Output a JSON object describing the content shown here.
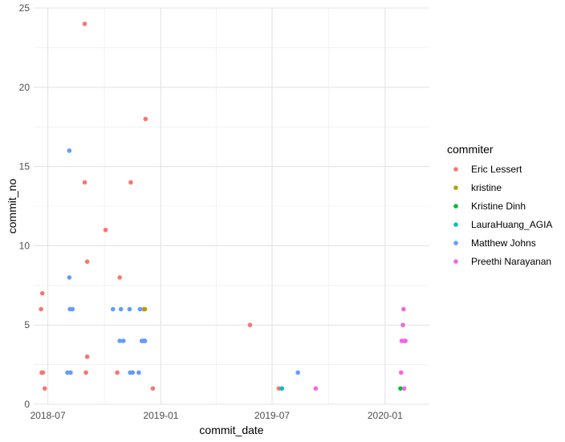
{
  "chart_data": {
    "type": "scatter",
    "title": "",
    "xlabel": "commit_date",
    "ylabel": "commit_no",
    "x_axis": "date",
    "xlim": [
      "2018-06-08",
      "2020-03-13"
    ],
    "ylim": [
      0,
      25
    ],
    "x_ticks": [
      {
        "value": "2018-07-01",
        "label": "2018-07"
      },
      {
        "value": "2019-01-01",
        "label": "2019-01"
      },
      {
        "value": "2019-07-01",
        "label": "2019-07"
      },
      {
        "value": "2020-01-01",
        "label": "2020-01"
      }
    ],
    "y_ticks": [
      0,
      5,
      10,
      15,
      20,
      25
    ],
    "grid": true,
    "legend": {
      "title": "commiter",
      "position": "right"
    },
    "series": [
      {
        "name": "Eric Lessert",
        "color": "#F8766D",
        "points": [
          {
            "x": "2018-06-20",
            "y": 6
          },
          {
            "x": "2018-06-22",
            "y": 7
          },
          {
            "x": "2018-06-21",
            "y": 2
          },
          {
            "x": "2018-06-23",
            "y": 2
          },
          {
            "x": "2018-06-26",
            "y": 1
          },
          {
            "x": "2018-08-30",
            "y": 24
          },
          {
            "x": "2018-08-30",
            "y": 14
          },
          {
            "x": "2018-09-01",
            "y": 2
          },
          {
            "x": "2018-09-03",
            "y": 9
          },
          {
            "x": "2018-09-03",
            "y": 3
          },
          {
            "x": "2018-10-03",
            "y": 11
          },
          {
            "x": "2018-10-26",
            "y": 8
          },
          {
            "x": "2018-10-22",
            "y": 2
          },
          {
            "x": "2018-11-13",
            "y": 14
          },
          {
            "x": "2018-12-07",
            "y": 18
          },
          {
            "x": "2018-12-04",
            "y": 6
          },
          {
            "x": "2018-12-19",
            "y": 1
          },
          {
            "x": "2019-05-26",
            "y": 5
          },
          {
            "x": "2019-07-12",
            "y": 1
          }
        ]
      },
      {
        "name": "kristine",
        "color": "#B79F00",
        "points": [
          {
            "x": "2018-12-06",
            "y": 6
          }
        ]
      },
      {
        "name": "Kristine Dinh",
        "color": "#00BA38",
        "points": [
          {
            "x": "2020-01-26",
            "y": 1
          }
        ]
      },
      {
        "name": "LauraHuang_AGIA",
        "color": "#00BFC4",
        "points": [
          {
            "x": "2019-07-17",
            "y": 1
          }
        ]
      },
      {
        "name": "Matthew Johns",
        "color": "#619CFF",
        "points": [
          {
            "x": "2018-08-05",
            "y": 16
          },
          {
            "x": "2018-08-05",
            "y": 8
          },
          {
            "x": "2018-08-06",
            "y": 6
          },
          {
            "x": "2018-08-10",
            "y": 6
          },
          {
            "x": "2018-08-02",
            "y": 2
          },
          {
            "x": "2018-08-07",
            "y": 2
          },
          {
            "x": "2018-10-15",
            "y": 6
          },
          {
            "x": "2018-10-28",
            "y": 6
          },
          {
            "x": "2018-10-26",
            "y": 4
          },
          {
            "x": "2018-11-01",
            "y": 4
          },
          {
            "x": "2018-11-11",
            "y": 6
          },
          {
            "x": "2018-11-12",
            "y": 2
          },
          {
            "x": "2018-11-16",
            "y": 2
          },
          {
            "x": "2018-11-26",
            "y": 2
          },
          {
            "x": "2018-11-28",
            "y": 6
          },
          {
            "x": "2018-12-01",
            "y": 4
          },
          {
            "x": "2018-12-04",
            "y": 4
          },
          {
            "x": "2018-12-06",
            "y": 4
          },
          {
            "x": "2019-08-12",
            "y": 2
          }
        ]
      },
      {
        "name": "Preethi Narayanan",
        "color": "#F564E3",
        "points": [
          {
            "x": "2019-09-10",
            "y": 1
          },
          {
            "x": "2020-01-27",
            "y": 2
          },
          {
            "x": "2020-01-28",
            "y": 4
          },
          {
            "x": "2020-01-30",
            "y": 5
          },
          {
            "x": "2020-01-31",
            "y": 6
          },
          {
            "x": "2020-02-01",
            "y": 4
          },
          {
            "x": "2020-02-03",
            "y": 4
          },
          {
            "x": "2020-02-01",
            "y": 1
          }
        ]
      }
    ]
  }
}
